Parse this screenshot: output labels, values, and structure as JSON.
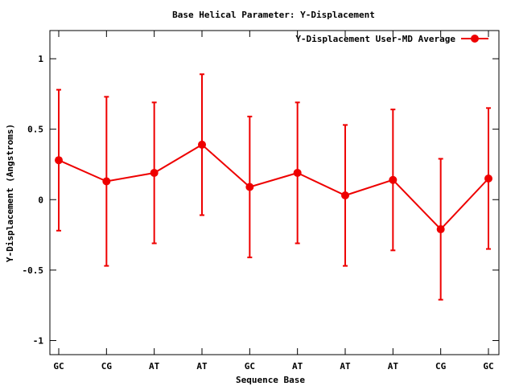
{
  "chart_data": {
    "type": "line",
    "title": "Base  Helical Parameter: Y-Displacement",
    "xlabel": "Sequence Base",
    "ylabel": "Y-Displacement (Angstroms)",
    "categories": [
      "GC",
      "CG",
      "AT",
      "AT",
      "GC",
      "AT",
      "AT",
      "AT",
      "CG",
      "GC"
    ],
    "ylim": [
      -1.1,
      1.2
    ],
    "yticks": [
      1,
      0.5,
      0,
      -0.5,
      -1
    ],
    "ytick_labels": [
      "1",
      "0.5",
      "0",
      "-0.5",
      "-1"
    ],
    "legend_position": "top-right",
    "grid": false,
    "series": [
      {
        "name": "Y-Displacement User-MD Average",
        "color": "#ee0000",
        "values": [
          0.28,
          0.13,
          0.19,
          0.39,
          0.09,
          0.19,
          0.03,
          0.14,
          -0.21,
          0.15
        ],
        "error": [
          0.5,
          0.6,
          0.5,
          0.5,
          0.5,
          0.5,
          0.5,
          0.5,
          0.5,
          0.5
        ]
      }
    ]
  }
}
